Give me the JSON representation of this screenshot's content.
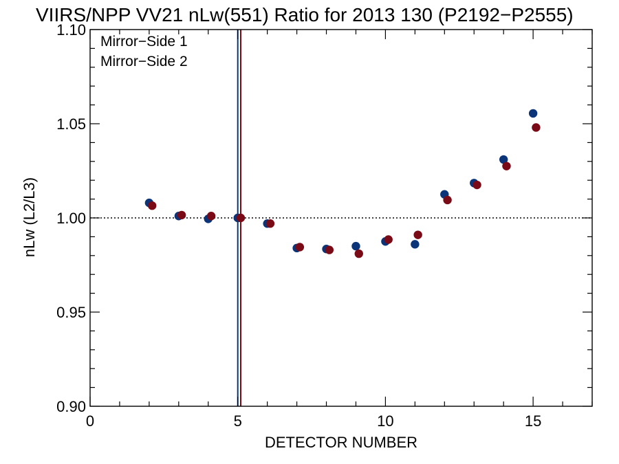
{
  "chart_data": {
    "type": "scatter",
    "title": "VIIRS/NPP VV21 nLw(551) Ratio for 2013 130 (P2192−P2555)",
    "xlabel": "DETECTOR NUMBER",
    "ylabel": "nLw (L2/L3)",
    "xlim": [
      0,
      17
    ],
    "ylim": [
      0.9,
      1.1
    ],
    "x_ticks": [
      0,
      5,
      10,
      15
    ],
    "x_tick_labels": [
      "0",
      "5",
      "10",
      "15"
    ],
    "y_ticks": [
      0.9,
      0.95,
      1.0,
      1.05,
      1.1
    ],
    "y_tick_labels": [
      "0.90",
      "0.95",
      "1.00",
      "1.05",
      "1.10"
    ],
    "reference_line": {
      "y": 1.0,
      "style": "dotted"
    },
    "vertical_lines": [
      {
        "x": 5.0,
        "series": "Mirror−Side 1"
      },
      {
        "x": 5.1,
        "series": "Mirror−Side 2"
      }
    ],
    "legend_position": "top-left",
    "grid": false,
    "series": [
      {
        "name": "Mirror−Side 1",
        "color": "#0b3479",
        "x": [
          2,
          3,
          4,
          5,
          6,
          7,
          8,
          9,
          10,
          11,
          12,
          13,
          14,
          15
        ],
        "y": [
          1.008,
          1.001,
          0.9995,
          1.0,
          0.997,
          0.984,
          0.9835,
          0.985,
          0.9875,
          0.986,
          1.0125,
          1.0185,
          1.031,
          1.0555
        ]
      },
      {
        "name": "Mirror−Side 2",
        "color": "#7a0b16",
        "x": [
          2.1,
          3.1,
          4.1,
          5.1,
          6.1,
          7.1,
          8.1,
          9.1,
          10.1,
          11.1,
          12.1,
          13.1,
          14.1,
          15.1
        ],
        "y": [
          1.0065,
          1.0015,
          1.001,
          1.0,
          0.997,
          0.9845,
          0.983,
          0.981,
          0.9885,
          0.991,
          1.0095,
          1.0175,
          1.0275,
          1.048
        ]
      }
    ]
  }
}
